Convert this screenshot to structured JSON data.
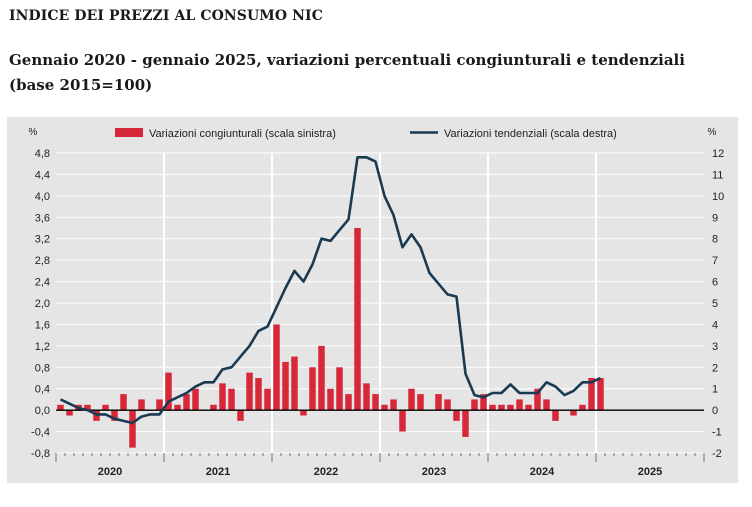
{
  "header": {
    "title": "INDICE DEI PREZZI AL CONSUMO NIC",
    "subtitle": "Gennaio 2020 - gennaio 2025, variazioni percentuali congiunturali e tendenziali (base 2015=100)"
  },
  "colors": {
    "bar": "#d7283a",
    "line": "#1a3a52",
    "panel": "#e5e5e5",
    "zero": "#000000"
  },
  "chart_data": {
    "type": "bar",
    "left_axis": {
      "unit": "%",
      "ticks": [
        "4,8",
        "4,4",
        "4,0",
        "3,6",
        "3,2",
        "2,8",
        "2,4",
        "2,0",
        "1,6",
        "1,2",
        "0,8",
        "0,4",
        "0,0",
        "-0,4",
        "-0,8"
      ],
      "range": [
        -0.8,
        4.8
      ]
    },
    "right_axis": {
      "unit": "%",
      "ticks": [
        "12",
        "11",
        "10",
        "9",
        "8",
        "7",
        "6",
        "5",
        "4",
        "3",
        "2",
        "1",
        "0",
        "-1",
        "-2"
      ],
      "range": [
        -2,
        12
      ]
    },
    "years": [
      "2020",
      "2021",
      "2022",
      "2023",
      "2024",
      "2025"
    ],
    "legend": [
      {
        "name": "Variazioni congiunturali (scala sinistra)",
        "kind": "bar"
      },
      {
        "name": "Variazioni tendenziali (scala destra)",
        "kind": "line"
      }
    ],
    "series": [
      {
        "name": "Variazioni congiunturali (scala sinistra)",
        "axis": "left",
        "start": "2020-01",
        "values": [
          0.1,
          -0.1,
          0.1,
          0.1,
          -0.2,
          0.1,
          -0.2,
          0.3,
          -0.7,
          0.2,
          0.0,
          0.2,
          0.7,
          0.1,
          0.3,
          0.4,
          0.0,
          0.1,
          0.5,
          0.4,
          -0.2,
          0.7,
          0.6,
          0.4,
          1.6,
          0.9,
          1.0,
          -0.1,
          0.8,
          1.2,
          0.4,
          0.8,
          0.3,
          3.4,
          0.5,
          0.3,
          0.1,
          0.2,
          -0.4,
          0.4,
          0.3,
          0.0,
          0.3,
          0.2,
          -0.2,
          -0.5,
          0.2,
          0.3,
          0.1,
          0.1,
          0.1,
          0.2,
          0.1,
          0.4,
          0.2,
          -0.2,
          0.0,
          -0.1,
          0.1,
          0.6,
          0.6
        ]
      },
      {
        "name": "Variazioni tendenziali (scala destra)",
        "axis": "right",
        "start": "2020-01",
        "values": [
          0.5,
          0.3,
          0.1,
          0.0,
          -0.2,
          -0.2,
          -0.4,
          -0.5,
          -0.6,
          -0.3,
          -0.2,
          -0.2,
          0.4,
          0.6,
          0.8,
          1.1,
          1.3,
          1.3,
          1.9,
          2.0,
          2.5,
          3.0,
          3.7,
          3.9,
          4.8,
          5.7,
          6.5,
          6.0,
          6.8,
          8.0,
          7.9,
          8.4,
          8.9,
          11.8,
          11.8,
          11.6,
          10.0,
          9.1,
          7.6,
          8.2,
          7.6,
          6.4,
          5.9,
          5.4,
          5.3,
          1.7,
          0.7,
          0.6,
          0.8,
          0.8,
          1.2,
          0.8,
          0.8,
          0.8,
          1.3,
          1.1,
          0.7,
          0.9,
          1.3,
          1.3,
          1.5
        ]
      }
    ]
  }
}
